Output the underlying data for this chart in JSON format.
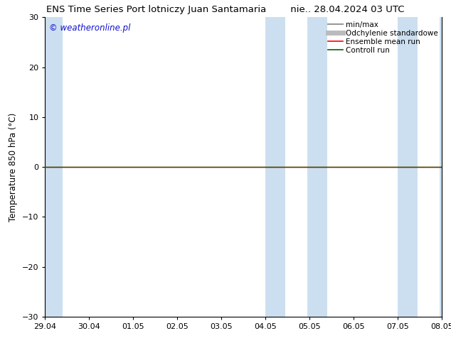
{
  "title_left": "ENS Time Series Port lotniczy Juan Santamaria",
  "title_right": "nie.. 28.04.2024 03 UTC",
  "ylabel": "Temperature 850 hPa (°C)",
  "ylim": [
    -30,
    30
  ],
  "yticks": [
    -30,
    -20,
    -10,
    0,
    10,
    20,
    30
  ],
  "xtick_labels": [
    "29.04",
    "30.04",
    "01.05",
    "02.05",
    "03.05",
    "04.05",
    "05.05",
    "06.05",
    "07.05",
    "08.05"
  ],
  "watermark": "© weatheronline.pl",
  "watermark_color": "#1010cc",
  "background_color": "#ffffff",
  "plot_bg_color": "#ffffff",
  "shaded_bands": [
    {
      "xstart": 0.0,
      "xend": 0.4
    },
    {
      "xstart": 5.0,
      "xend": 5.45
    },
    {
      "xstart": 5.95,
      "xend": 6.4
    },
    {
      "xstart": 8.0,
      "xend": 8.45
    },
    {
      "xstart": 8.95,
      "xend": 9.0
    }
  ],
  "band_color": "#ccdff0",
  "control_run_color": "#006600",
  "ensemble_mean_color": "#ff0000",
  "minmax_color": "#999999",
  "std_color": "#bbbbbb",
  "legend_labels": [
    "min/max",
    "Odchylenie standardowe",
    "Ensemble mean run",
    "Controll run"
  ],
  "title_fontsize": 9.5,
  "ylabel_fontsize": 8.5,
  "tick_fontsize": 8,
  "legend_fontsize": 7.5,
  "watermark_fontsize": 8.5
}
